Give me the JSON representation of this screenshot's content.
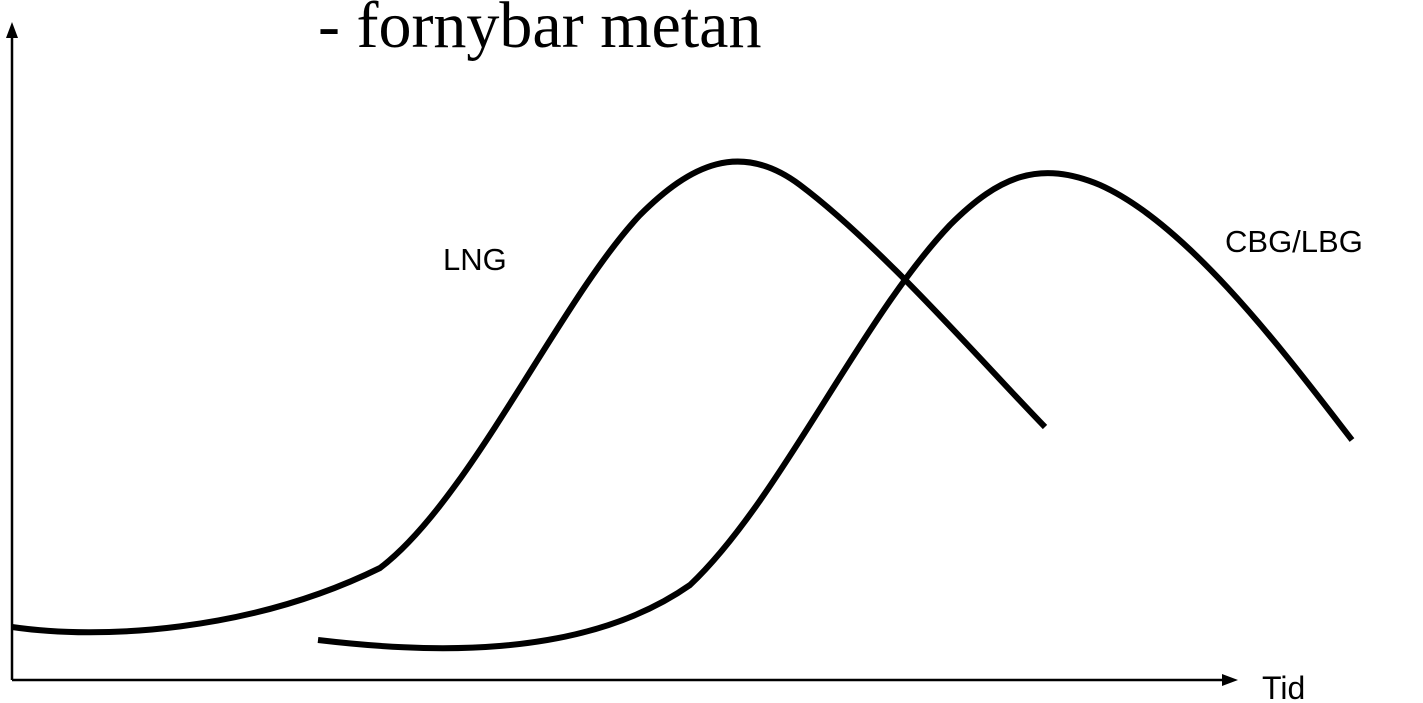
{
  "title": "- fornybar metan",
  "labels": {
    "lng": "LNG",
    "cbg_lbg": "CBG/LBG"
  },
  "x_axis_label": "Tid"
}
